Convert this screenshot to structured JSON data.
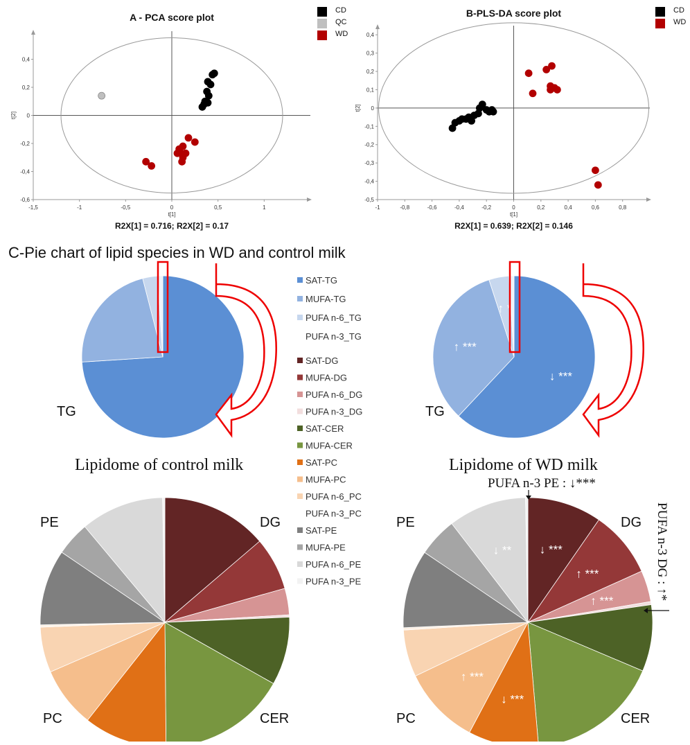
{
  "chart_data": [
    {
      "type": "scatter",
      "title": "A - PCA score plot",
      "xlabel": "t[1]",
      "ylabel": "t[2]",
      "footer": "R2X[1] = 0.716; R2X[2] = 0.17",
      "xlim": [
        -1.5,
        1.5
      ],
      "ylim": [
        -0.6,
        0.6
      ],
      "x_ticks": [
        "-1,5",
        "-1",
        "-0,5",
        "0",
        "0,5",
        "1"
      ],
      "y_ticks": [
        "-0,6",
        "-0,4",
        "-0,2",
        "0",
        "0,2",
        "0,4"
      ],
      "x_tick_values": [
        -1.5,
        -1,
        -0.5,
        0,
        0.5,
        1
      ],
      "y_tick_values": [
        -0.6,
        -0.4,
        -0.2,
        0,
        0.2,
        0.4
      ],
      "legend_position": "top-right",
      "series": [
        {
          "name": "CD",
          "color": "#000000",
          "points": [
            [
              0.44,
              0.29
            ],
            [
              0.46,
              0.3
            ],
            [
              0.39,
              0.24
            ],
            [
              0.42,
              0.22
            ],
            [
              0.38,
              0.17
            ],
            [
              0.4,
              0.14
            ],
            [
              0.36,
              0.1
            ],
            [
              0.39,
              0.09
            ],
            [
              0.33,
              0.06
            ],
            [
              0.35,
              0.08
            ]
          ]
        },
        {
          "name": "QC",
          "color": "#bfbfbf",
          "points": [
            [
              -0.76,
              0.14
            ]
          ]
        },
        {
          "name": "WD",
          "color": "#b20000",
          "points": [
            [
              0.18,
              -0.16
            ],
            [
              0.25,
              -0.19
            ],
            [
              0.12,
              -0.22
            ],
            [
              0.08,
              -0.24
            ],
            [
              0.06,
              -0.27
            ],
            [
              0.1,
              -0.27
            ],
            [
              0.15,
              -0.27
            ],
            [
              0.12,
              -0.3
            ],
            [
              0.11,
              -0.33
            ],
            [
              -0.28,
              -0.33
            ],
            [
              -0.22,
              -0.36
            ]
          ]
        }
      ]
    },
    {
      "type": "scatter",
      "title": "B-PLS-DA score plot",
      "xlabel": "t[1]",
      "ylabel": "t[2]",
      "footer": "R2X[1] = 0.639; R2X[2] = 0.146",
      "xlim": [
        -1,
        1
      ],
      "ylim": [
        -0.5,
        0.45
      ],
      "x_ticks": [
        "-1",
        "-0,8",
        "-0,6",
        "-0,4",
        "-0,2",
        "0",
        "0,2",
        "0,4",
        "0,6",
        "0,8"
      ],
      "y_ticks": [
        "-0,5",
        "-0,4",
        "-0,3",
        "-0,2",
        "-0,1",
        "0",
        "0,1",
        "0,2",
        "0,3",
        "0,4"
      ],
      "x_tick_values": [
        -1,
        -0.8,
        -0.6,
        -0.4,
        -0.2,
        0,
        0.2,
        0.4,
        0.6,
        0.8
      ],
      "y_tick_values": [
        -0.5,
        -0.4,
        -0.3,
        -0.2,
        -0.1,
        0,
        0.1,
        0.2,
        0.3,
        0.4
      ],
      "legend_position": "top-right",
      "series": [
        {
          "name": "CD",
          "color": "#000000",
          "points": [
            [
              -0.45,
              -0.11
            ],
            [
              -0.43,
              -0.08
            ],
            [
              -0.4,
              -0.07
            ],
            [
              -0.38,
              -0.06
            ],
            [
              -0.35,
              -0.06
            ],
            [
              -0.33,
              -0.05
            ],
            [
              -0.31,
              -0.07
            ],
            [
              -0.29,
              -0.04
            ],
            [
              -0.26,
              -0.03
            ],
            [
              -0.25,
              0
            ],
            [
              -0.23,
              0.02
            ],
            [
              -0.2,
              -0.01
            ],
            [
              -0.18,
              -0.02
            ],
            [
              -0.16,
              -0.01
            ],
            [
              -0.15,
              -0.02
            ]
          ]
        },
        {
          "name": "WD",
          "color": "#b20000",
          "points": [
            [
              0.11,
              0.19
            ],
            [
              0.24,
              0.21
            ],
            [
              0.28,
              0.23
            ],
            [
              0.14,
              0.08
            ],
            [
              0.27,
              0.1
            ],
            [
              0.3,
              0.11
            ],
            [
              0.27,
              0.12
            ],
            [
              0.32,
              0.1
            ],
            [
              0.6,
              -0.34
            ],
            [
              0.62,
              -0.42
            ]
          ]
        }
      ]
    },
    {
      "type": "pie",
      "title": "Lipidome of control milk",
      "label": "TG",
      "slices": [
        {
          "name": "SAT-TG",
          "value": 74,
          "color": "#5b8fd4"
        },
        {
          "name": "MUFA-TG",
          "value": 22,
          "color": "#92b2e0"
        },
        {
          "name": "PUFA n-6_TG",
          "value": 3,
          "color": "#c7d7ee"
        },
        {
          "name": "PUFA n-3_TG",
          "value": 1,
          "color": "#eef3fa"
        }
      ]
    },
    {
      "type": "pie",
      "title": "Lipidome of WD milk",
      "label": "TG",
      "slices": [
        {
          "name": "SAT-TG",
          "value": 62,
          "color": "#5b8fd4",
          "annotation": "↓ ***"
        },
        {
          "name": "MUFA-TG",
          "value": 33,
          "color": "#92b2e0",
          "annotation": "↑ ***"
        },
        {
          "name": "PUFA n-6_TG",
          "value": 4,
          "color": "#c7d7ee",
          "annotation": "↑ *"
        },
        {
          "name": "PUFA n-3_TG",
          "value": 1,
          "color": "#eef3fa"
        }
      ]
    },
    {
      "type": "pie",
      "title": "Lipidome of control milk",
      "group_labels": [
        "DG",
        "CER",
        "PC",
        "PE"
      ],
      "slices": [
        {
          "name": "SAT-DG",
          "value": 14,
          "color": "#622525"
        },
        {
          "name": "MUFA-DG",
          "value": 7,
          "color": "#943838"
        },
        {
          "name": "PUFA n-6_DG",
          "value": 3.5,
          "color": "#d69494"
        },
        {
          "name": "PUFA n-3_DG",
          "value": 0.3,
          "color": "#f2dede"
        },
        {
          "name": "SAT-CER",
          "value": 9,
          "color": "#4d6226"
        },
        {
          "name": "MUFA-CER",
          "value": 17,
          "color": "#789640"
        },
        {
          "name": "SAT-PC",
          "value": 11,
          "color": "#e07016"
        },
        {
          "name": "MUFA-PC",
          "value": 8,
          "color": "#f5be8c"
        },
        {
          "name": "PUFA n-6_PC",
          "value": 6,
          "color": "#f9d4b2"
        },
        {
          "name": "PUFA n-3_PC",
          "value": 0.3,
          "color": "#fdf0e4"
        },
        {
          "name": "SAT-PE",
          "value": 10,
          "color": "#7f7f7f"
        },
        {
          "name": "MUFA-PE",
          "value": 4.5,
          "color": "#a5a5a5"
        },
        {
          "name": "PUFA n-6_PE",
          "value": 11,
          "color": "#d9d9d9"
        },
        {
          "name": "PUFA n-3_PE",
          "value": 0.3,
          "color": "#f2f2f2"
        }
      ]
    },
    {
      "type": "pie",
      "title": "Lipidome of WD milk",
      "group_labels": [
        "DG",
        "CER",
        "PC",
        "PE"
      ],
      "slices": [
        {
          "name": "SAT-DG",
          "value": 9.5,
          "color": "#622525",
          "annotation": "↓ ***"
        },
        {
          "name": "MUFA-DG",
          "value": 8.5,
          "color": "#943838",
          "annotation": "↑ ***"
        },
        {
          "name": "PUFA n-6_DG",
          "value": 4,
          "color": "#d69494",
          "annotation": "↑ ***"
        },
        {
          "name": "PUFA n-3_DG",
          "value": 0.4,
          "color": "#f2dede"
        },
        {
          "name": "SAT-CER",
          "value": 8.5,
          "color": "#4d6226"
        },
        {
          "name": "MUFA-CER",
          "value": 17,
          "color": "#789640"
        },
        {
          "name": "SAT-PC",
          "value": 9,
          "color": "#e07016",
          "annotation": "↓ ***"
        },
        {
          "name": "MUFA-PC",
          "value": 10,
          "color": "#f5be8c",
          "annotation": "↑ ***"
        },
        {
          "name": "PUFA n-6_PC",
          "value": 6,
          "color": "#f9d4b2"
        },
        {
          "name": "PUFA n-3_PC",
          "value": 0.3,
          "color": "#fdf0e4"
        },
        {
          "name": "SAT-PE",
          "value": 10,
          "color": "#7f7f7f"
        },
        {
          "name": "MUFA-PE",
          "value": 5,
          "color": "#a5a5a5"
        },
        {
          "name": "PUFA n-6_PE",
          "value": 10,
          "color": "#d9d9d9",
          "annotation": "↓ **"
        },
        {
          "name": "PUFA n-3_PE",
          "value": 0.3,
          "color": "#f2f2f2"
        }
      ]
    }
  ],
  "section_title": "C-Pie chart of lipid species in WD and control milk",
  "legend": [
    {
      "label": "SAT-TG",
      "color": "#5b8fd4"
    },
    {
      "label": "MUFA-TG",
      "color": "#92b2e0"
    },
    {
      "label": "PUFA n-6_TG",
      "color": "#c7d7ee"
    },
    {
      "label": "PUFA n-3_TG",
      "color": "#ffffff"
    },
    {
      "label": "SAT-DG",
      "color": "#622525"
    },
    {
      "label": "MUFA-DG",
      "color": "#943838"
    },
    {
      "label": "PUFA n-6_DG",
      "color": "#d69494"
    },
    {
      "label": "PUFA n-3_DG",
      "color": "#f2dede"
    },
    {
      "label": "SAT-CER",
      "color": "#4d6226"
    },
    {
      "label": "MUFA-CER",
      "color": "#789640"
    },
    {
      "label": "SAT-PC",
      "color": "#e07016"
    },
    {
      "label": "MUFA-PC",
      "color": "#f5be8c"
    },
    {
      "label": "PUFA n-6_PC",
      "color": "#f9d4b2"
    },
    {
      "label": "PUFA n-3_PC",
      "color": "#ffffff"
    },
    {
      "label": "SAT-PE",
      "color": "#7f7f7f"
    },
    {
      "label": "MUFA-PE",
      "color": "#a5a5a5"
    },
    {
      "label": "PUFA n-6_PE",
      "color": "#d9d9d9"
    },
    {
      "label": "PUFA n-3_PE",
      "color": "#f2f2f2"
    }
  ],
  "annotations": {
    "pufa_n3_pe": "PUFA n-3 PE : ↓***",
    "pufa_n3_dg": "PUFA n-3 DG : ↑*"
  }
}
